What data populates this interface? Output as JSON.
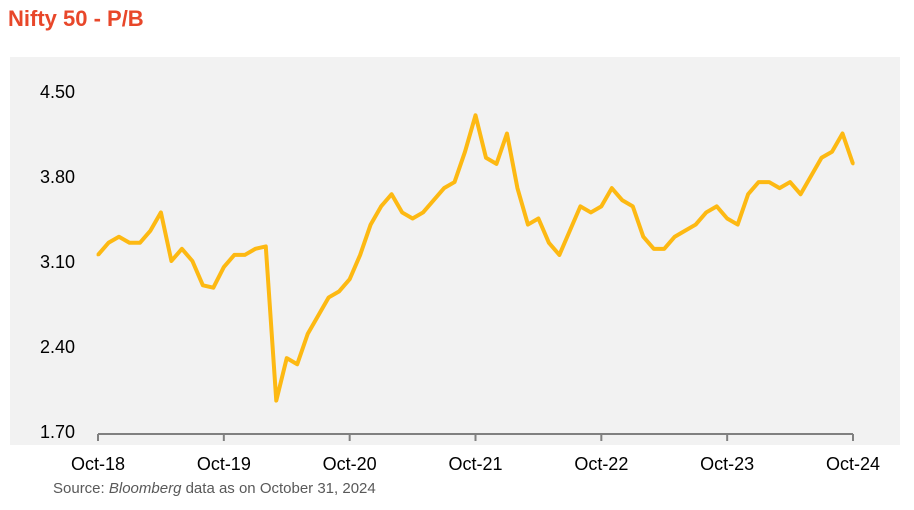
{
  "chart_data": {
    "type": "line",
    "title": "Nifty 50 - P/B",
    "xlabel": "",
    "ylabel": "",
    "ylim": [
      1.7,
      4.5
    ],
    "y_ticks": [
      "4.50",
      "3.80",
      "3.10",
      "2.40",
      "1.70"
    ],
    "x_ticks": [
      "Oct-18",
      "Oct-19",
      "Oct-20",
      "Oct-21",
      "Oct-22",
      "Oct-23",
      "Oct-24"
    ],
    "grid": false,
    "line_color": "#fdb913",
    "series": [
      {
        "x": [
          "Oct-18",
          "Nov-18",
          "Dec-18",
          "Jan-19",
          "Feb-19",
          "Mar-19",
          "Apr-19",
          "May-19",
          "Jun-19",
          "Jul-19",
          "Aug-19",
          "Sep-19",
          "Oct-19",
          "Nov-19",
          "Dec-19",
          "Jan-20",
          "Feb-20",
          "Mar-20",
          "Apr-20",
          "May-20",
          "Jun-20",
          "Jul-20",
          "Aug-20",
          "Sep-20",
          "Oct-20",
          "Nov-20",
          "Dec-20",
          "Jan-21",
          "Feb-21",
          "Mar-21",
          "Apr-21",
          "May-21",
          "Jun-21",
          "Jul-21",
          "Aug-21",
          "Sep-21",
          "Oct-21",
          "Nov-21",
          "Dec-21",
          "Jan-22",
          "Feb-22",
          "Mar-22",
          "Apr-22",
          "May-22",
          "Jun-22",
          "Jul-22",
          "Aug-22",
          "Sep-22",
          "Oct-22",
          "Nov-22",
          "Dec-22",
          "Jan-23",
          "Feb-23",
          "Mar-23",
          "Apr-23",
          "May-23",
          "Jun-23",
          "Jul-23",
          "Aug-23",
          "Sep-23",
          "Oct-23",
          "Nov-23",
          "Dec-23",
          "Jan-24",
          "Feb-24",
          "Mar-24",
          "Apr-24",
          "May-24",
          "Jun-24",
          "Jul-24",
          "Aug-24",
          "Sep-24",
          "Oct-24"
        ],
        "values": [
          3.15,
          3.25,
          3.3,
          3.25,
          3.25,
          3.35,
          3.5,
          3.1,
          3.2,
          3.1,
          2.9,
          2.88,
          3.05,
          3.15,
          3.15,
          3.2,
          3.22,
          1.95,
          2.3,
          2.25,
          2.5,
          2.65,
          2.8,
          2.85,
          2.95,
          3.15,
          3.4,
          3.55,
          3.65,
          3.5,
          3.45,
          3.5,
          3.6,
          3.7,
          3.75,
          4.0,
          4.3,
          3.95,
          3.9,
          4.15,
          3.7,
          3.4,
          3.45,
          3.25,
          3.15,
          3.35,
          3.55,
          3.5,
          3.55,
          3.7,
          3.6,
          3.55,
          3.3,
          3.2,
          3.2,
          3.3,
          3.35,
          3.4,
          3.5,
          3.55,
          3.45,
          3.4,
          3.65,
          3.75,
          3.75,
          3.7,
          3.75,
          3.65,
          3.8,
          3.95,
          4.0,
          4.15,
          3.9
        ]
      }
    ]
  },
  "source": {
    "prefix": "Source: ",
    "italic": "Bloomberg",
    "suffix": " data as on October 31, 2024"
  }
}
